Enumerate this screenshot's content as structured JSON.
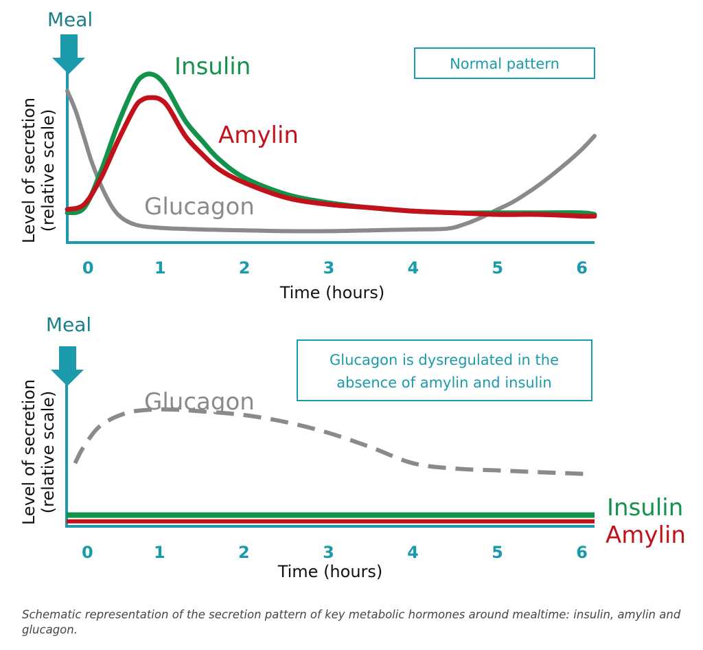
{
  "colors": {
    "axis": "#1a9aab",
    "meal": "#1b7f8a",
    "insulin": "#12924a",
    "amylin": "#c1121c",
    "glucagon": "#8a8a8a",
    "text": "#111111",
    "box_text": "#1a9aab"
  },
  "chart_data": [
    {
      "type": "line",
      "title": "",
      "annotation_box": "Normal pattern",
      "meal_label": "Meal",
      "xlabel": "Time (hours)",
      "ylabel_line1": "Level of secretion",
      "ylabel_line2": "(relative scale)",
      "xlim": [
        -0.1,
        6.15
      ],
      "ylim": [
        0,
        1
      ],
      "x_ticks": [
        "0",
        "1",
        "2",
        "3",
        "4",
        "5",
        "6"
      ],
      "x_tick_values": [
        0,
        1,
        2,
        3,
        4,
        5,
        6
      ],
      "grid": false,
      "series": [
        {
          "name": "Insulin",
          "color_key": "insulin",
          "style": "solid",
          "x": [
            -0.1,
            0.1,
            0.3,
            0.5,
            0.7,
            0.8,
            0.9,
            1.0,
            1.1,
            1.3,
            1.5,
            1.7,
            2.0,
            2.5,
            3.0,
            3.5,
            4.0,
            4.5,
            5.0,
            5.5,
            6.0,
            6.15
          ],
          "y": [
            0.17,
            0.2,
            0.42,
            0.7,
            0.93,
            0.99,
            1.0,
            0.97,
            0.9,
            0.72,
            0.6,
            0.49,
            0.38,
            0.28,
            0.23,
            0.2,
            0.18,
            0.17,
            0.17,
            0.17,
            0.17,
            0.16
          ]
        },
        {
          "name": "Amylin",
          "color_key": "amylin",
          "style": "solid",
          "x": [
            -0.1,
            0.1,
            0.3,
            0.5,
            0.7,
            0.8,
            0.9,
            1.0,
            1.1,
            1.3,
            1.5,
            1.7,
            2.0,
            2.5,
            3.0,
            3.5,
            4.0,
            4.5,
            5.0,
            5.5,
            6.0,
            6.15
          ],
          "y": [
            0.19,
            0.22,
            0.38,
            0.6,
            0.8,
            0.85,
            0.86,
            0.85,
            0.8,
            0.63,
            0.52,
            0.43,
            0.35,
            0.26,
            0.22,
            0.2,
            0.18,
            0.17,
            0.16,
            0.16,
            0.15,
            0.15
          ]
        },
        {
          "name": "Glucagon",
          "color_key": "glucagon",
          "style": "solid",
          "x": [
            -0.1,
            0.0,
            0.1,
            0.2,
            0.35,
            0.5,
            0.7,
            1.0,
            1.5,
            2.0,
            2.5,
            3.0,
            3.5,
            4.0,
            4.4,
            4.6,
            4.8,
            5.0,
            5.2,
            5.5,
            5.8,
            6.0,
            6.15
          ],
          "y": [
            0.9,
            0.78,
            0.62,
            0.46,
            0.28,
            0.16,
            0.1,
            0.08,
            0.07,
            0.065,
            0.06,
            0.06,
            0.065,
            0.07,
            0.075,
            0.1,
            0.14,
            0.19,
            0.24,
            0.34,
            0.46,
            0.55,
            0.63
          ]
        }
      ],
      "labels": {
        "insulin": "Insulin",
        "amylin": "Amylin",
        "glucagon": "Glucagon"
      }
    },
    {
      "type": "line",
      "title": "",
      "annotation_box_line1": "Glucagon is dysregulated in the",
      "annotation_box_line2": "absence of amylin and insulin",
      "meal_label": "Meal",
      "xlabel": "Time (hours)",
      "ylabel_line1": "Level of secretion",
      "ylabel_line2": "(relative scale)",
      "xlim": [
        -0.1,
        6.15
      ],
      "ylim": [
        0,
        1
      ],
      "x_ticks": [
        "0",
        "1",
        "2",
        "3",
        "4",
        "5",
        "6"
      ],
      "x_tick_values": [
        0,
        1,
        2,
        3,
        4,
        5,
        6
      ],
      "grid": false,
      "series": [
        {
          "name": "Glucagon",
          "color_key": "glucagon",
          "style": "dashed",
          "x": [
            0.0,
            0.1,
            0.3,
            0.6,
            0.9,
            1.2,
            1.5,
            2.0,
            2.5,
            3.0,
            3.5,
            4.0,
            4.5,
            5.0,
            5.5,
            6.05
          ],
          "y": [
            0.33,
            0.42,
            0.54,
            0.61,
            0.63,
            0.63,
            0.62,
            0.6,
            0.56,
            0.5,
            0.42,
            0.33,
            0.3,
            0.29,
            0.28,
            0.27
          ]
        },
        {
          "name": "Insulin",
          "color_key": "insulin",
          "style": "solid",
          "x": [
            -0.1,
            6.15
          ],
          "y": [
            0.04,
            0.04
          ]
        },
        {
          "name": "Amylin",
          "color_key": "amylin",
          "style": "solid",
          "x": [
            -0.1,
            6.15
          ],
          "y": [
            0.005,
            0.005
          ]
        }
      ],
      "labels": {
        "insulin": "Insulin",
        "amylin": "Amylin",
        "glucagon": "Glucagon"
      }
    }
  ],
  "caption": "Schematic representation of the secretion pattern of key metabolic hormones around mealtime: insulin, amylin and glucagon."
}
